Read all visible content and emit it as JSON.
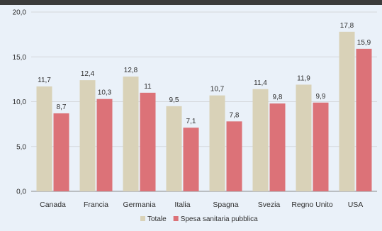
{
  "chart_data": {
    "type": "bar",
    "categories": [
      "Canada",
      "Francia",
      "Germania",
      "Italia",
      "Spagna",
      "Svezia",
      "Regno Unito",
      "USA"
    ],
    "series": [
      {
        "name": "Totale",
        "color": "#d9d2b8",
        "values": [
          11.7,
          12.4,
          12.8,
          9.5,
          10.7,
          11.4,
          11.9,
          17.8
        ],
        "labels": [
          "11,7",
          "12,4",
          "12,8",
          "9,5",
          "10,7",
          "11,4",
          "11,9",
          "17,8"
        ]
      },
      {
        "name": "Spesa sanitaria pubblica",
        "color": "#dc7278",
        "values": [
          8.7,
          10.3,
          11,
          7.1,
          7.8,
          9.8,
          9.9,
          15.9
        ],
        "labels": [
          "8,7",
          "10,3",
          "11",
          "7,1",
          "7,8",
          "9,8",
          "9,9",
          "15,9"
        ]
      }
    ],
    "yticks": [
      {
        "value": 0,
        "label": "0,0"
      },
      {
        "value": 5,
        "label": "5,0"
      },
      {
        "value": 10,
        "label": "10,0"
      },
      {
        "value": 15,
        "label": "15,0"
      },
      {
        "value": 20,
        "label": "20,0"
      }
    ],
    "ylim": [
      0,
      20
    ],
    "grid": true,
    "legend_position": "bottom-center"
  }
}
